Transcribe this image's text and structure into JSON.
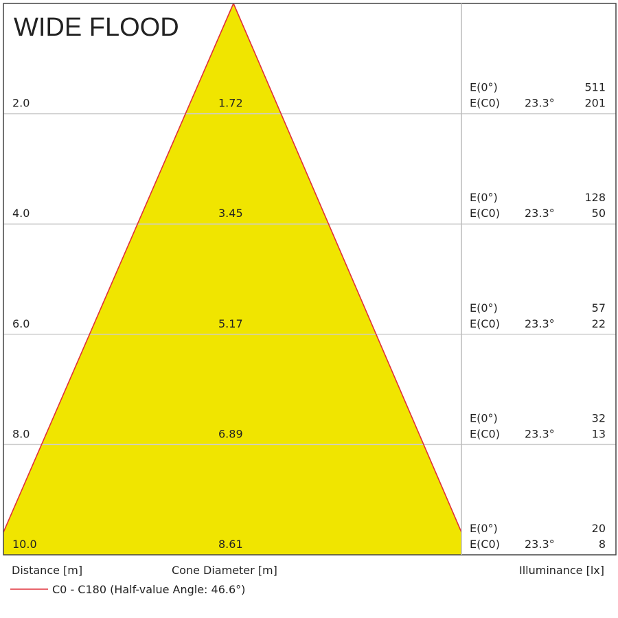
{
  "title": "WIDE FLOOD",
  "rows": [
    {
      "distance": "2.0",
      "diameter": "1.72",
      "e0_label": "E(0°)",
      "e0": "511",
      "ec0_label": "E(C0)",
      "angle": "23.3°",
      "ec0": "201"
    },
    {
      "distance": "4.0",
      "diameter": "3.45",
      "e0_label": "E(0°)",
      "e0": "128",
      "ec0_label": "E(C0)",
      "angle": "23.3°",
      "ec0": "50"
    },
    {
      "distance": "6.0",
      "diameter": "5.17",
      "e0_label": "E(0°)",
      "e0": "57",
      "ec0_label": "E(C0)",
      "angle": "23.3°",
      "ec0": "22"
    },
    {
      "distance": "8.0",
      "diameter": "6.89",
      "e0_label": "E(0°)",
      "e0": "32",
      "ec0_label": "E(C0)",
      "angle": "23.3°",
      "ec0": "13"
    },
    {
      "distance": "10.0",
      "diameter": "8.61",
      "e0_label": "E(0°)",
      "e0": "20",
      "ec0_label": "E(C0)",
      "angle": "23.3°",
      "ec0": "8"
    }
  ],
  "footer": {
    "distance_label": "Distance [m]",
    "diameter_label": "Cone Diameter [m]",
    "illuminance_label": "Illuminance [lx]"
  },
  "legend": "C0 - C180 (Half-value Angle: 46.6°)"
}
